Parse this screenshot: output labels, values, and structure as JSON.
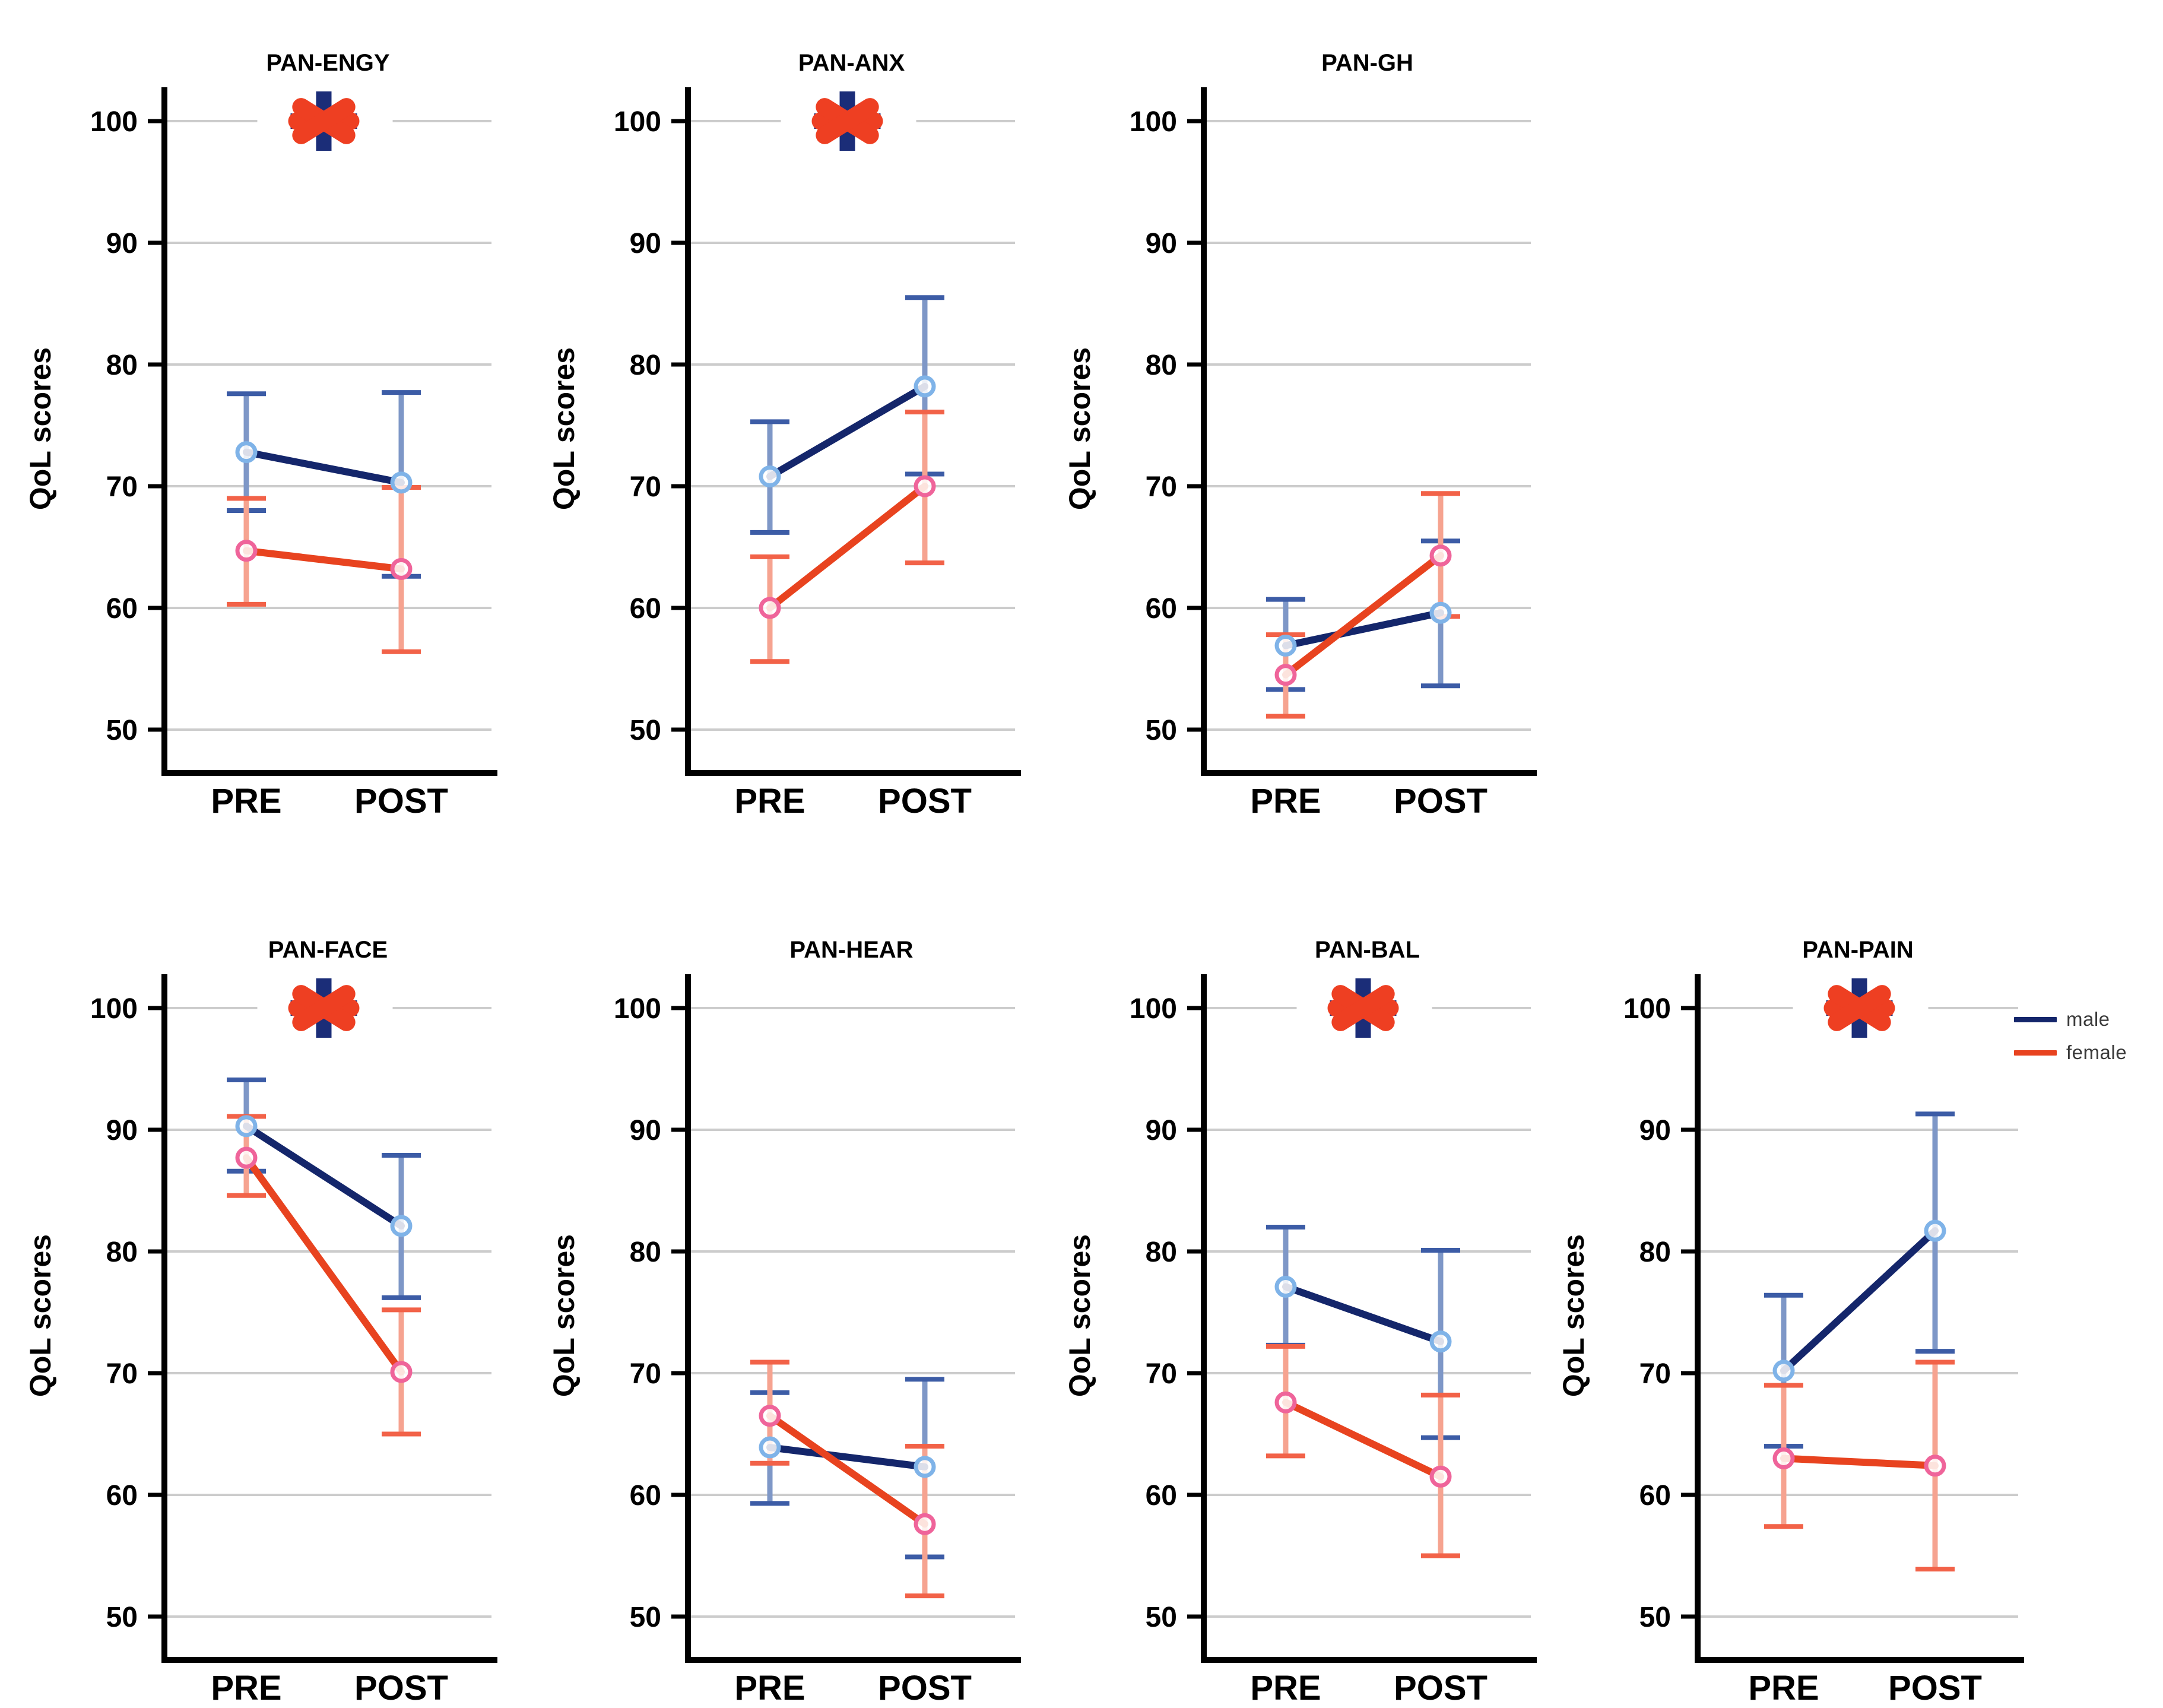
{
  "figure": {
    "ylabel": "QoL scores",
    "xticklabels": [
      "PRE",
      "POST"
    ],
    "yticks": [
      100,
      90,
      80,
      70,
      60,
      50
    ],
    "ylim": [
      46,
      103
    ],
    "grid": true,
    "significance_marker": "asterisk"
  },
  "legend": {
    "position": "right-of-pan-pain",
    "items": [
      {
        "label": "male",
        "color": "#14266b"
      },
      {
        "label": "female",
        "color": "#e8431f"
      }
    ]
  },
  "colors": {
    "male_line": "#14266b",
    "male_marker_ring": "#7fb3e8",
    "male_whisker": "#7e97c7",
    "male_cap": "#3c5ca6",
    "female_line": "#e8431f",
    "female_marker_ring": "#ef649a",
    "female_whisker": "#f6a390",
    "female_cap": "#f26248",
    "gridline": "#cccccc",
    "axis": "#000000",
    "tick_label": "#000000",
    "star_front": "#ee3f22",
    "star_back": "#1b2d78"
  },
  "chart_data": [
    {
      "type": "line",
      "title": "PAN-ENGY",
      "significant": true,
      "row": 0,
      "col": 0,
      "categories": [
        "PRE",
        "POST"
      ],
      "series": [
        {
          "name": "male",
          "values": [
            72.8,
            70.3
          ],
          "err_low": [
            68.0,
            62.6
          ],
          "err_high": [
            77.6,
            77.7
          ]
        },
        {
          "name": "female",
          "values": [
            64.7,
            63.2
          ],
          "err_low": [
            60.3,
            56.4
          ],
          "err_high": [
            69.0,
            69.9
          ]
        }
      ]
    },
    {
      "type": "line",
      "title": "PAN-ANX",
      "significant": true,
      "row": 0,
      "col": 1,
      "categories": [
        "PRE",
        "POST"
      ],
      "series": [
        {
          "name": "male",
          "values": [
            70.8,
            78.2
          ],
          "err_low": [
            66.2,
            71.0
          ],
          "err_high": [
            75.3,
            85.5
          ]
        },
        {
          "name": "female",
          "values": [
            60.0,
            70.0
          ],
          "err_low": [
            55.6,
            63.7
          ],
          "err_high": [
            64.2,
            76.1
          ]
        }
      ]
    },
    {
      "type": "line",
      "title": "PAN-GH",
      "significant": false,
      "row": 0,
      "col": 2,
      "categories": [
        "PRE",
        "POST"
      ],
      "series": [
        {
          "name": "male",
          "values": [
            56.9,
            59.6
          ],
          "err_low": [
            53.3,
            53.6
          ],
          "err_high": [
            60.7,
            65.5
          ]
        },
        {
          "name": "female",
          "values": [
            54.5,
            64.3
          ],
          "err_low": [
            51.1,
            59.3
          ],
          "err_high": [
            57.8,
            69.4
          ]
        }
      ]
    },
    {
      "type": "line",
      "title": "PAN-FACE",
      "significant": true,
      "row": 1,
      "col": 0,
      "categories": [
        "PRE",
        "POST"
      ],
      "series": [
        {
          "name": "male",
          "values": [
            90.3,
            82.1
          ],
          "err_low": [
            86.6,
            76.2
          ],
          "err_high": [
            94.1,
            87.9
          ]
        },
        {
          "name": "female",
          "values": [
            87.7,
            70.1
          ],
          "err_low": [
            84.6,
            65.0
          ],
          "err_high": [
            91.1,
            75.2
          ]
        }
      ]
    },
    {
      "type": "line",
      "title": "PAN-HEAR",
      "significant": false,
      "row": 1,
      "col": 1,
      "categories": [
        "PRE",
        "POST"
      ],
      "series": [
        {
          "name": "male",
          "values": [
            63.9,
            62.3
          ],
          "err_low": [
            59.3,
            54.9
          ],
          "err_high": [
            68.4,
            69.5
          ]
        },
        {
          "name": "female",
          "values": [
            66.5,
            57.6
          ],
          "err_low": [
            62.6,
            51.7
          ],
          "err_high": [
            70.9,
            64.0
          ]
        }
      ]
    },
    {
      "type": "line",
      "title": "PAN-BAL",
      "significant": true,
      "row": 1,
      "col": 2,
      "categories": [
        "PRE",
        "POST"
      ],
      "series": [
        {
          "name": "male",
          "values": [
            77.1,
            72.6
          ],
          "err_low": [
            72.3,
            64.7
          ],
          "err_high": [
            82.0,
            80.1
          ]
        },
        {
          "name": "female",
          "values": [
            67.6,
            61.5
          ],
          "err_low": [
            63.2,
            55.0
          ],
          "err_high": [
            72.2,
            68.2
          ]
        }
      ]
    },
    {
      "type": "line",
      "title": "PAN-PAIN",
      "significant": true,
      "row": 1,
      "col": 3,
      "categories": [
        "PRE",
        "POST"
      ],
      "series": [
        {
          "name": "male",
          "values": [
            70.2,
            81.7
          ],
          "err_low": [
            64.0,
            71.8
          ],
          "err_high": [
            76.4,
            91.3
          ]
        },
        {
          "name": "female",
          "values": [
            63.0,
            62.4
          ],
          "err_low": [
            57.4,
            53.9
          ],
          "err_high": [
            69.0,
            70.9
          ]
        }
      ]
    }
  ]
}
